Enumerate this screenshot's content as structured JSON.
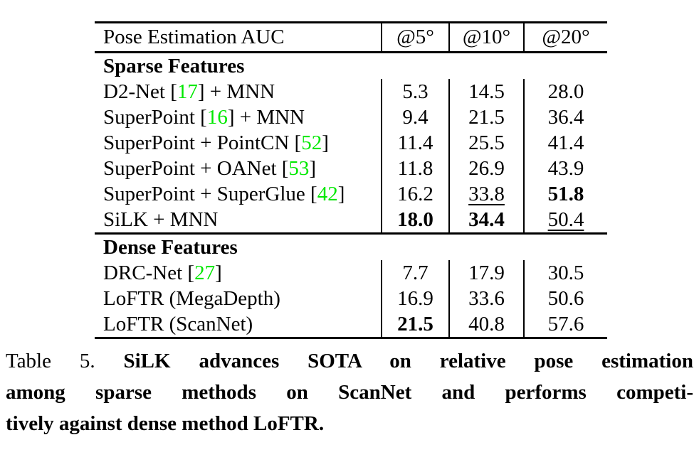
{
  "colors": {
    "text": "#000000",
    "background": "#ffffff",
    "citation_green": "#00e800",
    "rule": "#000000"
  },
  "table": {
    "headers": [
      "Pose Estimation AUC",
      "@5°",
      "@10°",
      "@20°"
    ],
    "sections": [
      {
        "title": "Sparse Features",
        "rows": [
          {
            "method_pre": "D2-Net [",
            "citation": "17",
            "method_post": "] + MNN",
            "values": [
              {
                "text": "5.3"
              },
              {
                "text": "14.5"
              },
              {
                "text": "28.0"
              }
            ]
          },
          {
            "method_pre": "SuperPoint [",
            "citation": "16",
            "method_post": "] + MNN",
            "values": [
              {
                "text": "9.4"
              },
              {
                "text": "21.5"
              },
              {
                "text": "36.4"
              }
            ]
          },
          {
            "method_pre": "SuperPoint + PointCN [",
            "citation": "52",
            "method_post": "]",
            "values": [
              {
                "text": "11.4"
              },
              {
                "text": "25.5"
              },
              {
                "text": "41.4"
              }
            ]
          },
          {
            "method_pre": "SuperPoint + OANet [",
            "citation": "53",
            "method_post": "]",
            "values": [
              {
                "text": "11.8"
              },
              {
                "text": "26.9"
              },
              {
                "text": "43.9"
              }
            ]
          },
          {
            "method_pre": "SuperPoint + SuperGlue [",
            "citation": "42",
            "method_post": "]",
            "values": [
              {
                "text": "16.2"
              },
              {
                "text": "33.8",
                "underline": true
              },
              {
                "text": "51.8",
                "bold": true
              }
            ]
          },
          {
            "method_pre": "SiLK + MNN",
            "citation": "",
            "method_post": "",
            "values": [
              {
                "text": "18.0",
                "bold": true
              },
              {
                "text": "34.4",
                "bold": true
              },
              {
                "text": "50.4",
                "underline": true
              }
            ]
          }
        ]
      },
      {
        "title": "Dense Features",
        "rows": [
          {
            "method_pre": "DRC-Net [",
            "citation": "27",
            "method_post": "]",
            "values": [
              {
                "text": "7.7"
              },
              {
                "text": "17.9"
              },
              {
                "text": "30.5"
              }
            ]
          },
          {
            "method_pre": "LoFTR (MegaDepth)",
            "citation": "",
            "method_post": "",
            "values": [
              {
                "text": "16.9"
              },
              {
                "text": "33.6"
              },
              {
                "text": "50.6"
              }
            ]
          },
          {
            "method_pre": "LoFTR (ScanNet)",
            "citation": "",
            "method_post": "",
            "values": [
              {
                "text": "21.5",
                "bold": true
              },
              {
                "text": "40.8"
              },
              {
                "text": "57.6"
              }
            ]
          }
        ]
      }
    ]
  },
  "caption": {
    "label": "Table 5.",
    "line1": "SiLK advances SOTA on relative pose estimation",
    "line2": "among sparse methods on ScanNet and performs competi-",
    "line3": "tively against dense method LoFTR."
  }
}
